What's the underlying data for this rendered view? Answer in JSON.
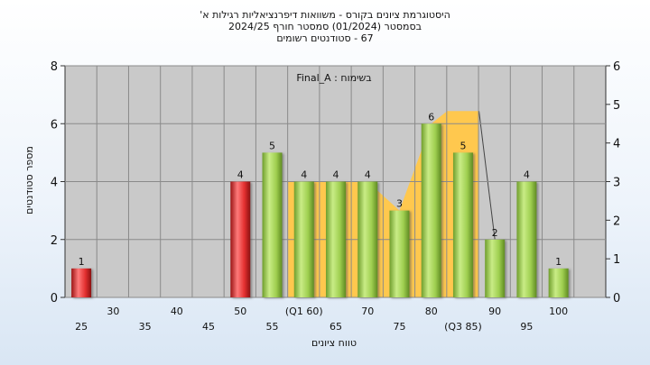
{
  "titles": {
    "line1": "היסטוגרמת ציונים בקורס - משוואות דיפרנציאליות רגילות א'",
    "line2": "בסמסטר (01/2024) סמסטר חורף 2024/25",
    "line3": "67 - סטודנטים רשומים"
  },
  "chart_data": {
    "type": "bar",
    "title": "",
    "annotation": "Final_A : בשימוח",
    "xlabel": "טווח ציונים",
    "ylabel": "מספר סטודנטים",
    "ylim": [
      0,
      8
    ],
    "y2lim": [
      0,
      6
    ],
    "yticks": [
      0,
      2,
      4,
      6,
      8
    ],
    "y2ticks": [
      0,
      1,
      2,
      3,
      4,
      5,
      6
    ],
    "grid": true,
    "categories": [
      "25",
      "30",
      "35",
      "40",
      "45",
      "50",
      "55",
      "60",
      "65",
      "70",
      "75",
      "80",
      "85",
      "90",
      "95",
      "100"
    ],
    "x_tick_labels_row1": [
      "",
      "30",
      "",
      "40",
      "",
      "50",
      "",
      "(Q1 60)",
      "",
      "70",
      "",
      "80",
      "",
      "90",
      "",
      "100"
    ],
    "x_tick_labels_row2": [
      "25",
      "",
      "35",
      "",
      "45",
      "",
      "55",
      "",
      "65",
      "",
      "75",
      "",
      "(Q3 85)",
      "",
      "95",
      ""
    ],
    "values": [
      1,
      0,
      0,
      0,
      0,
      4,
      5,
      4,
      4,
      4,
      3,
      6,
      5,
      2,
      4,
      1
    ],
    "bar_colors": [
      "red",
      null,
      null,
      null,
      null,
      "red",
      "green",
      "green",
      "green",
      "green",
      "green",
      "green",
      "green",
      "green",
      "green",
      "green"
    ],
    "interquartile_band": {
      "from": "60",
      "to": "85",
      "color": "#ffc84e"
    },
    "colors": {
      "red": "#e33030",
      "green": "#9fcf50",
      "band": "#ffc84e",
      "plot_bg": "#c9c9c9",
      "grid": "#8a8a8a"
    }
  }
}
